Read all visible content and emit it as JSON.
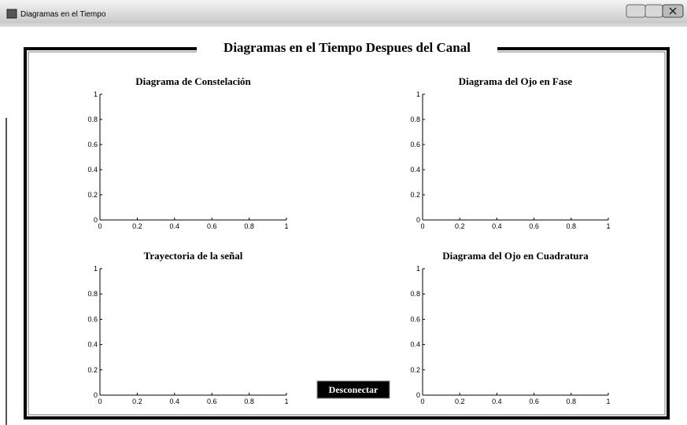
{
  "window": {
    "title": "Diagramas en el Tiempo"
  },
  "panel": {
    "title": "Diagramas en el Tiempo Despues del Canal"
  },
  "button": {
    "label": "Desconectar"
  },
  "chart_data": [
    {
      "type": "line",
      "title": "Diagrama de Constelación",
      "xlim": [
        0,
        1
      ],
      "ylim": [
        0,
        1
      ],
      "xticks": [
        0,
        0.2,
        0.4,
        0.6,
        0.8,
        1
      ],
      "yticks": [
        0,
        0.2,
        0.4,
        0.6,
        0.8,
        1
      ]
    },
    {
      "type": "line",
      "title": "Diagrama del Ojo en Fase",
      "xlim": [
        0,
        1
      ],
      "ylim": [
        0,
        1
      ],
      "xticks": [
        0,
        0.2,
        0.4,
        0.6,
        0.8,
        1
      ],
      "yticks": [
        0,
        0.2,
        0.4,
        0.6,
        0.8,
        1
      ]
    },
    {
      "type": "line",
      "title": "Trayectoria de la señal",
      "xlim": [
        0,
        1
      ],
      "ylim": [
        0,
        1
      ],
      "xticks": [
        0,
        0.2,
        0.4,
        0.6,
        0.8,
        1
      ],
      "yticks": [
        0,
        0.2,
        0.4,
        0.6,
        0.8,
        1
      ]
    },
    {
      "type": "line",
      "title": "Diagrama del Ojo en Cuadratura",
      "xlim": [
        0,
        1
      ],
      "ylim": [
        0,
        1
      ],
      "xticks": [
        0,
        0.2,
        0.4,
        0.6,
        0.8,
        1
      ],
      "yticks": [
        0,
        0.2,
        0.4,
        0.6,
        0.8,
        1
      ]
    }
  ]
}
